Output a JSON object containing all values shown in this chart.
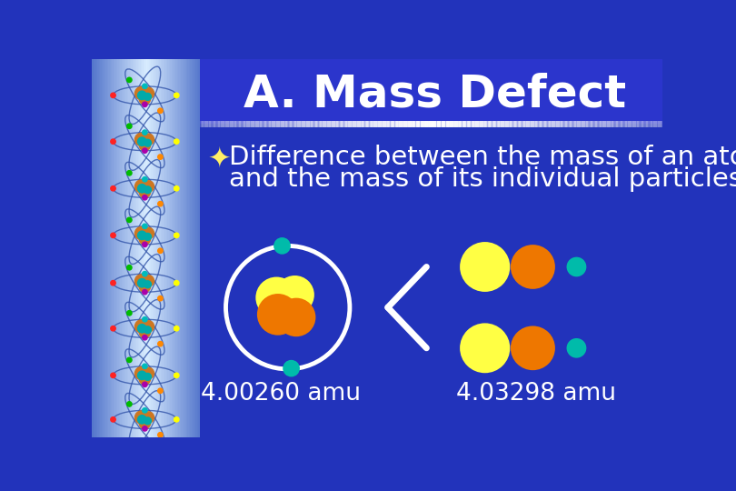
{
  "title": "A. Mass Defect",
  "title_fontsize": 36,
  "title_color": "#FFFFFF",
  "title_bg_color": "#2B35CC",
  "main_bg_color": "#2233BB",
  "left_strip_center": "#C8DCF0",
  "left_strip_edge": "#5577CC",
  "separator_color": "#FFFFFF",
  "bullet_symbol": "✦",
  "bullet_text_line1": "Difference between the mass of an atom",
  "bullet_text_line2": "and the mass of its individual particles.",
  "bullet_fontsize": 21,
  "bullet_color": "#FFFFFF",
  "bullet_symbol_color": "#FFEE66",
  "label_left": "4.00260 amu",
  "label_right": "4.03298 amu",
  "label_fontsize": 19,
  "label_color": "#FFFFFF",
  "yellow_color": "#FFFF44",
  "orange_color": "#EE7700",
  "teal_color": "#00BBAA",
  "white_color": "#FFFFFF",
  "black_color": "#222222",
  "nucleus_bg": "#1A2FA0"
}
